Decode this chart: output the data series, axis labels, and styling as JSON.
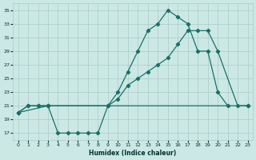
{
  "xlabel": "Humidex (Indice chaleur)",
  "bg_color": "#cce8e4",
  "line_color": "#1a7068",
  "grid_color": "#a8ccc8",
  "xlim": [
    -0.5,
    23.5
  ],
  "ylim": [
    16,
    36
  ],
  "yticks": [
    17,
    19,
    21,
    23,
    25,
    27,
    29,
    31,
    33,
    35
  ],
  "xticks": [
    0,
    1,
    2,
    3,
    4,
    5,
    6,
    7,
    8,
    9,
    10,
    11,
    12,
    13,
    14,
    15,
    16,
    17,
    18,
    19,
    20,
    21,
    22,
    23
  ],
  "line1_x": [
    0,
    1,
    2,
    3,
    4,
    5,
    6,
    7,
    8,
    9,
    10,
    11,
    12,
    13,
    14,
    15,
    16,
    17,
    18,
    19,
    20,
    21
  ],
  "line1_y": [
    20,
    21,
    21,
    21,
    17,
    17,
    17,
    17,
    17,
    21,
    23,
    26,
    29,
    32,
    33,
    35,
    34,
    33,
    29,
    29,
    23,
    21
  ],
  "line2_x": [
    0,
    1,
    2,
    3,
    9,
    10,
    11,
    12,
    13,
    14,
    15,
    16,
    17,
    18,
    19,
    20,
    22,
    23
  ],
  "line2_y": [
    20,
    21,
    21,
    21,
    21,
    22,
    24,
    25,
    26,
    27,
    28,
    30,
    32,
    32,
    32,
    29,
    21,
    21
  ],
  "line3_x": [
    0,
    3,
    23
  ],
  "line3_y": [
    20,
    21,
    21
  ]
}
